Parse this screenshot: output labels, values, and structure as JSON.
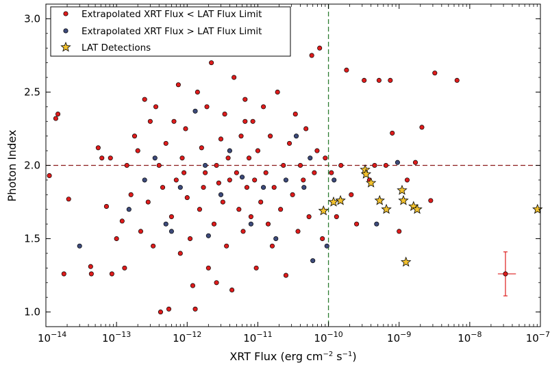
{
  "chart_data": {
    "type": "scatter",
    "xlabel": "XRT Flux (erg cm",
    "xlabel_exp1": "−2",
    "xlabel_mid": " s",
    "xlabel_exp2": "−1",
    "xlabel_end": ")",
    "ylabel": "Photon Index",
    "x_scale": "log",
    "xlim": [
      1e-14,
      1e-07
    ],
    "ylim": [
      0.9,
      3.1
    ],
    "x_ticks": [
      {
        "value": 1e-14,
        "base": "10",
        "exp": "−14"
      },
      {
        "value": 1e-13,
        "base": "10",
        "exp": "−13"
      },
      {
        "value": 1e-12,
        "base": "10",
        "exp": "−12"
      },
      {
        "value": 1e-11,
        "base": "10",
        "exp": "−11"
      },
      {
        "value": 1e-10,
        "base": "10",
        "exp": "−10"
      },
      {
        "value": 1e-09,
        "base": "10",
        "exp": "−9"
      },
      {
        "value": 1e-08,
        "base": "10",
        "exp": "−8"
      },
      {
        "value": 1e-07,
        "base": "10",
        "exp": "−7"
      }
    ],
    "y_ticks": [
      {
        "value": 1.0,
        "label": "1.0"
      },
      {
        "value": 1.5,
        "label": "1.5"
      },
      {
        "value": 2.0,
        "label": "2.0"
      },
      {
        "value": 2.5,
        "label": "2.5"
      },
      {
        "value": 3.0,
        "label": "3.0"
      }
    ],
    "reference_lines": {
      "horizontal": {
        "y": 2.0,
        "color": "#8b1a1a",
        "style": "dashed"
      },
      "vertical": {
        "x": 1e-10,
        "color": "#2e7d32",
        "style": "dashed"
      }
    },
    "legend": {
      "position": "top-left",
      "entries": [
        {
          "label": "Extrapolated XRT Flux < LAT Flux Limit",
          "marker": "circle",
          "color": "#dd1c1c"
        },
        {
          "label": "Extrapolated XRT Flux > LAT Flux Limit",
          "marker": "circle",
          "color": "#3d4a7a"
        },
        {
          "label": "LAT Detections",
          "marker": "star",
          "color": "#f2c12e"
        }
      ]
    },
    "series": [
      {
        "name": "Extrapolated XRT Flux < LAT Flux Limit",
        "color": "#dd1c1c",
        "marker": "circle",
        "points": [
          [
            1.12e-14,
            1.93
          ],
          [
            1.38e-14,
            2.32
          ],
          [
            1.48e-14,
            2.35
          ],
          [
            1.8e-14,
            1.26
          ],
          [
            2.1e-14,
            1.77
          ],
          [
            4.3e-14,
            1.31
          ],
          [
            4.4e-14,
            1.26
          ],
          [
            5.5e-14,
            2.12
          ],
          [
            6.2e-14,
            2.05
          ],
          [
            7.2e-14,
            1.72
          ],
          [
            8.2e-14,
            2.05
          ],
          [
            8.6e-14,
            1.26
          ],
          [
            1e-13,
            1.5
          ],
          [
            1.2e-13,
            1.62
          ],
          [
            1.3e-13,
            1.3
          ],
          [
            1.4e-13,
            2.0
          ],
          [
            1.6e-13,
            1.8
          ],
          [
            1.8e-13,
            2.2
          ],
          [
            2e-13,
            2.1
          ],
          [
            2.2e-13,
            1.55
          ],
          [
            2.5e-13,
            2.45
          ],
          [
            2.8e-13,
            1.75
          ],
          [
            3e-13,
            2.3
          ],
          [
            3.3e-13,
            1.45
          ],
          [
            3.6e-13,
            2.4
          ],
          [
            4e-13,
            2.0
          ],
          [
            4.2e-13,
            1.0
          ],
          [
            4.5e-13,
            1.85
          ],
          [
            5e-13,
            2.15
          ],
          [
            5.5e-13,
            1.02
          ],
          [
            6e-13,
            1.65
          ],
          [
            6.5e-13,
            2.3
          ],
          [
            7e-13,
            1.9
          ],
          [
            7.5e-13,
            2.55
          ],
          [
            8e-13,
            1.4
          ],
          [
            8.5e-13,
            2.05
          ],
          [
            9e-13,
            1.95
          ],
          [
            9.5e-13,
            2.25
          ],
          [
            1e-12,
            1.78
          ],
          [
            1.1e-12,
            1.5
          ],
          [
            1.2e-12,
            1.18
          ],
          [
            1.3e-12,
            1.02
          ],
          [
            1.4e-12,
            2.5
          ],
          [
            1.5e-12,
            1.7
          ],
          [
            1.6e-12,
            2.12
          ],
          [
            1.7e-12,
            1.85
          ],
          [
            1.8e-12,
            1.95
          ],
          [
            1.9e-12,
            2.4
          ],
          [
            2e-12,
            1.3
          ],
          [
            2.2e-12,
            2.7
          ],
          [
            2.4e-12,
            1.6
          ],
          [
            2.6e-12,
            2.0
          ],
          [
            2.8e-12,
            1.88
          ],
          [
            3e-12,
            2.18
          ],
          [
            3.2e-12,
            1.75
          ],
          [
            3.4e-12,
            2.35
          ],
          [
            3.6e-12,
            1.45
          ],
          [
            3.8e-12,
            2.05
          ],
          [
            4e-12,
            1.9
          ],
          [
            4.3e-12,
            1.15
          ],
          [
            4.6e-12,
            2.6
          ],
          [
            5e-12,
            1.95
          ],
          [
            5.4e-12,
            1.7
          ],
          [
            5.8e-12,
            2.2
          ],
          [
            6.2e-12,
            1.55
          ],
          [
            6.6e-12,
            2.45
          ],
          [
            7e-12,
            1.85
          ],
          [
            7.5e-12,
            2.05
          ],
          [
            8e-12,
            1.65
          ],
          [
            8.5e-12,
            2.3
          ],
          [
            9e-12,
            1.9
          ],
          [
            9.5e-12,
            1.3
          ],
          [
            1e-11,
            2.1
          ],
          [
            1.1e-11,
            1.75
          ],
          [
            1.2e-11,
            2.4
          ],
          [
            1.3e-11,
            1.95
          ],
          [
            1.4e-11,
            1.6
          ],
          [
            1.5e-11,
            2.2
          ],
          [
            1.7e-11,
            1.85
          ],
          [
            1.9e-11,
            2.5
          ],
          [
            2.1e-11,
            1.7
          ],
          [
            2.3e-11,
            2.0
          ],
          [
            2.5e-11,
            1.25
          ],
          [
            2.8e-11,
            2.15
          ],
          [
            3.1e-11,
            1.8
          ],
          [
            3.4e-11,
            2.35
          ],
          [
            3.7e-11,
            1.55
          ],
          [
            4e-11,
            2.0
          ],
          [
            4.4e-11,
            1.9
          ],
          [
            4.8e-11,
            2.25
          ],
          [
            5.3e-11,
            1.65
          ],
          [
            5.8e-11,
            2.75
          ],
          [
            6.3e-11,
            1.95
          ],
          [
            6.9e-11,
            2.1
          ],
          [
            7.5e-11,
            2.8
          ],
          [
            8.2e-11,
            1.5
          ],
          [
            9e-11,
            2.05
          ],
          [
            1.1e-10,
            1.95
          ],
          [
            1.3e-10,
            1.65
          ],
          [
            1.5e-10,
            2.0
          ],
          [
            1.8e-10,
            2.65
          ],
          [
            2.1e-10,
            1.8
          ],
          [
            2.5e-10,
            1.6
          ],
          [
            3.2e-10,
            2.58
          ],
          [
            3.8e-10,
            1.9
          ],
          [
            4.5e-10,
            2.0
          ],
          [
            5.2e-10,
            2.58
          ],
          [
            6.5e-10,
            2.0
          ],
          [
            7.5e-10,
            2.58
          ],
          [
            8e-10,
            2.22
          ],
          [
            1e-09,
            1.55
          ],
          [
            1.3e-09,
            1.9
          ],
          [
            1.7e-09,
            2.02
          ],
          [
            2.1e-09,
            2.26
          ],
          [
            2.8e-09,
            1.76
          ],
          [
            3.2e-09,
            2.63
          ],
          [
            6.6e-09,
            2.58
          ],
          [
            6.6e-12,
            2.3
          ],
          [
            2.6e-12,
            1.2
          ],
          [
            1.6e-11,
            1.45
          ]
        ]
      },
      {
        "name": "Extrapolated XRT Flux > LAT Flux Limit",
        "color": "#3d4a7a",
        "marker": "circle",
        "points": [
          [
            3e-14,
            1.45
          ],
          [
            1.5e-13,
            1.7
          ],
          [
            2.5e-13,
            1.9
          ],
          [
            3.5e-13,
            2.05
          ],
          [
            5e-13,
            1.6
          ],
          [
            6e-13,
            1.55
          ],
          [
            8e-13,
            1.85
          ],
          [
            1.3e-12,
            2.37
          ],
          [
            1.8e-12,
            2.0
          ],
          [
            2e-12,
            1.52
          ],
          [
            3e-12,
            1.8
          ],
          [
            4e-12,
            2.1
          ],
          [
            6e-12,
            1.92
          ],
          [
            8e-12,
            1.6
          ],
          [
            1.2e-11,
            1.85
          ],
          [
            1.8e-11,
            1.5
          ],
          [
            2.5e-11,
            1.9
          ],
          [
            3.5e-11,
            2.2
          ],
          [
            4.5e-11,
            1.85
          ],
          [
            6e-11,
            1.35
          ],
          [
            9.5e-11,
            1.45
          ],
          [
            1.2e-10,
            1.9
          ],
          [
            4.8e-10,
            1.6
          ],
          [
            9.5e-10,
            2.02
          ],
          [
            5.5e-11,
            2.05
          ]
        ]
      },
      {
        "name": "LAT Detections",
        "color": "#f2c12e",
        "marker": "star",
        "points": [
          [
            8.5e-11,
            1.69
          ],
          [
            1.18e-10,
            1.75
          ],
          [
            1.48e-10,
            1.76
          ],
          [
            3.3e-10,
            1.97
          ],
          [
            3.4e-10,
            1.94
          ],
          [
            4e-10,
            1.88
          ],
          [
            5.3e-10,
            1.76
          ],
          [
            6.6e-10,
            1.7
          ],
          [
            1.1e-09,
            1.83
          ],
          [
            1.15e-09,
            1.76
          ],
          [
            1.6e-09,
            1.72
          ],
          [
            1.8e-09,
            1.7
          ],
          [
            1.25e-09,
            1.34
          ],
          [
            9.1e-08,
            1.7
          ]
        ]
      }
    ],
    "error_bar_example": {
      "color": "#dd1c1c",
      "x": 3.2e-08,
      "y": 1.26,
      "x_range": [
        2.5e-08,
        4.5e-08
      ],
      "y_range": [
        1.11,
        1.41
      ]
    }
  }
}
